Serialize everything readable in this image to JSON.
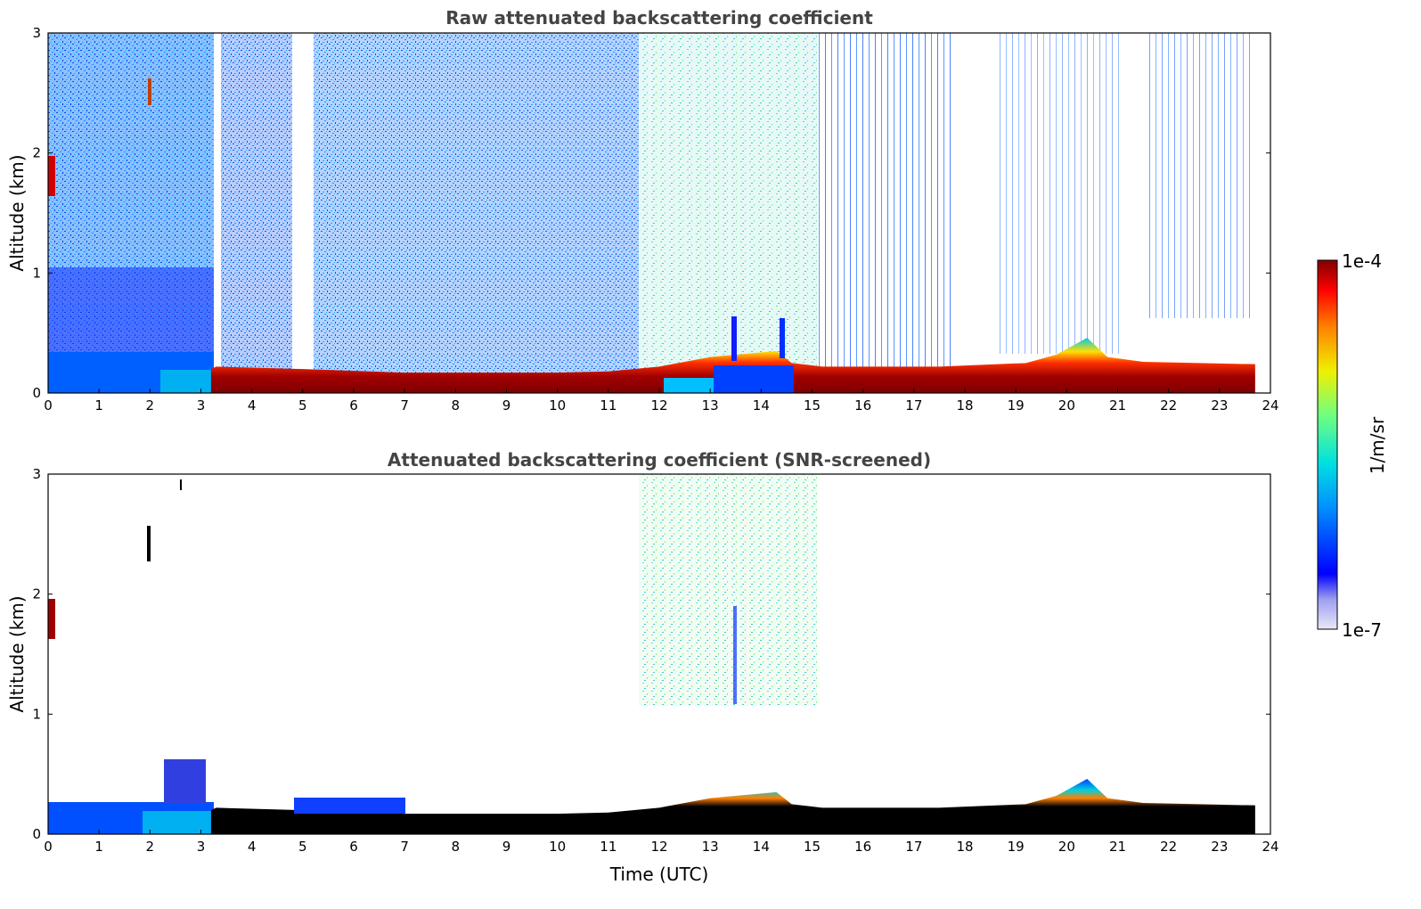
{
  "chart_data": [
    {
      "type": "heatmap",
      "title": "Raw attenuated backscattering coefficient",
      "xlabel": "",
      "ylabel": "Altitude (km)",
      "xlim": [
        0,
        24
      ],
      "ylim": [
        0,
        3
      ],
      "xticks": [
        "0",
        "1",
        "2",
        "3",
        "4",
        "5",
        "6",
        "7",
        "8",
        "9",
        "10",
        "11",
        "12",
        "13",
        "14",
        "15",
        "16",
        "17",
        "18",
        "19",
        "20",
        "21",
        "22",
        "23",
        "24"
      ],
      "yticks": [
        "0",
        "1",
        "2",
        "3"
      ],
      "layer_top_km": [
        [
          0,
          0.22
        ],
        [
          3.2,
          0.2
        ],
        [
          3.3,
          0.22
        ],
        [
          5,
          0.2
        ],
        [
          7,
          0.17
        ],
        [
          10,
          0.17
        ],
        [
          11,
          0.18
        ],
        [
          12,
          0.22
        ],
        [
          13,
          0.3
        ],
        [
          14.3,
          0.35
        ],
        [
          14.6,
          0.25
        ],
        [
          15.2,
          0.22
        ],
        [
          17.5,
          0.22
        ],
        [
          19.2,
          0.25
        ],
        [
          19.8,
          0.32
        ],
        [
          20.4,
          0.46
        ],
        [
          20.8,
          0.3
        ],
        [
          21.5,
          0.26
        ],
        [
          23.7,
          0.24
        ]
      ],
      "grid": false
    },
    {
      "type": "heatmap",
      "title": "Attenuated backscattering coefficient (SNR-screened)",
      "xlabel": "Time (UTC)",
      "ylabel": "Altitude (km)",
      "xlim": [
        0,
        24
      ],
      "ylim": [
        0,
        3
      ],
      "xticks": [
        "0",
        "1",
        "2",
        "3",
        "4",
        "5",
        "6",
        "7",
        "8",
        "9",
        "10",
        "11",
        "12",
        "13",
        "14",
        "15",
        "16",
        "17",
        "18",
        "19",
        "20",
        "21",
        "22",
        "23",
        "24"
      ],
      "yticks": [
        "0",
        "1",
        "2",
        "3"
      ],
      "grid": false
    }
  ],
  "colorbar": {
    "label": "1/m/sr",
    "max_label": "1e-4",
    "min_label": "1e-7",
    "colormap": "jet",
    "scale": "log"
  }
}
